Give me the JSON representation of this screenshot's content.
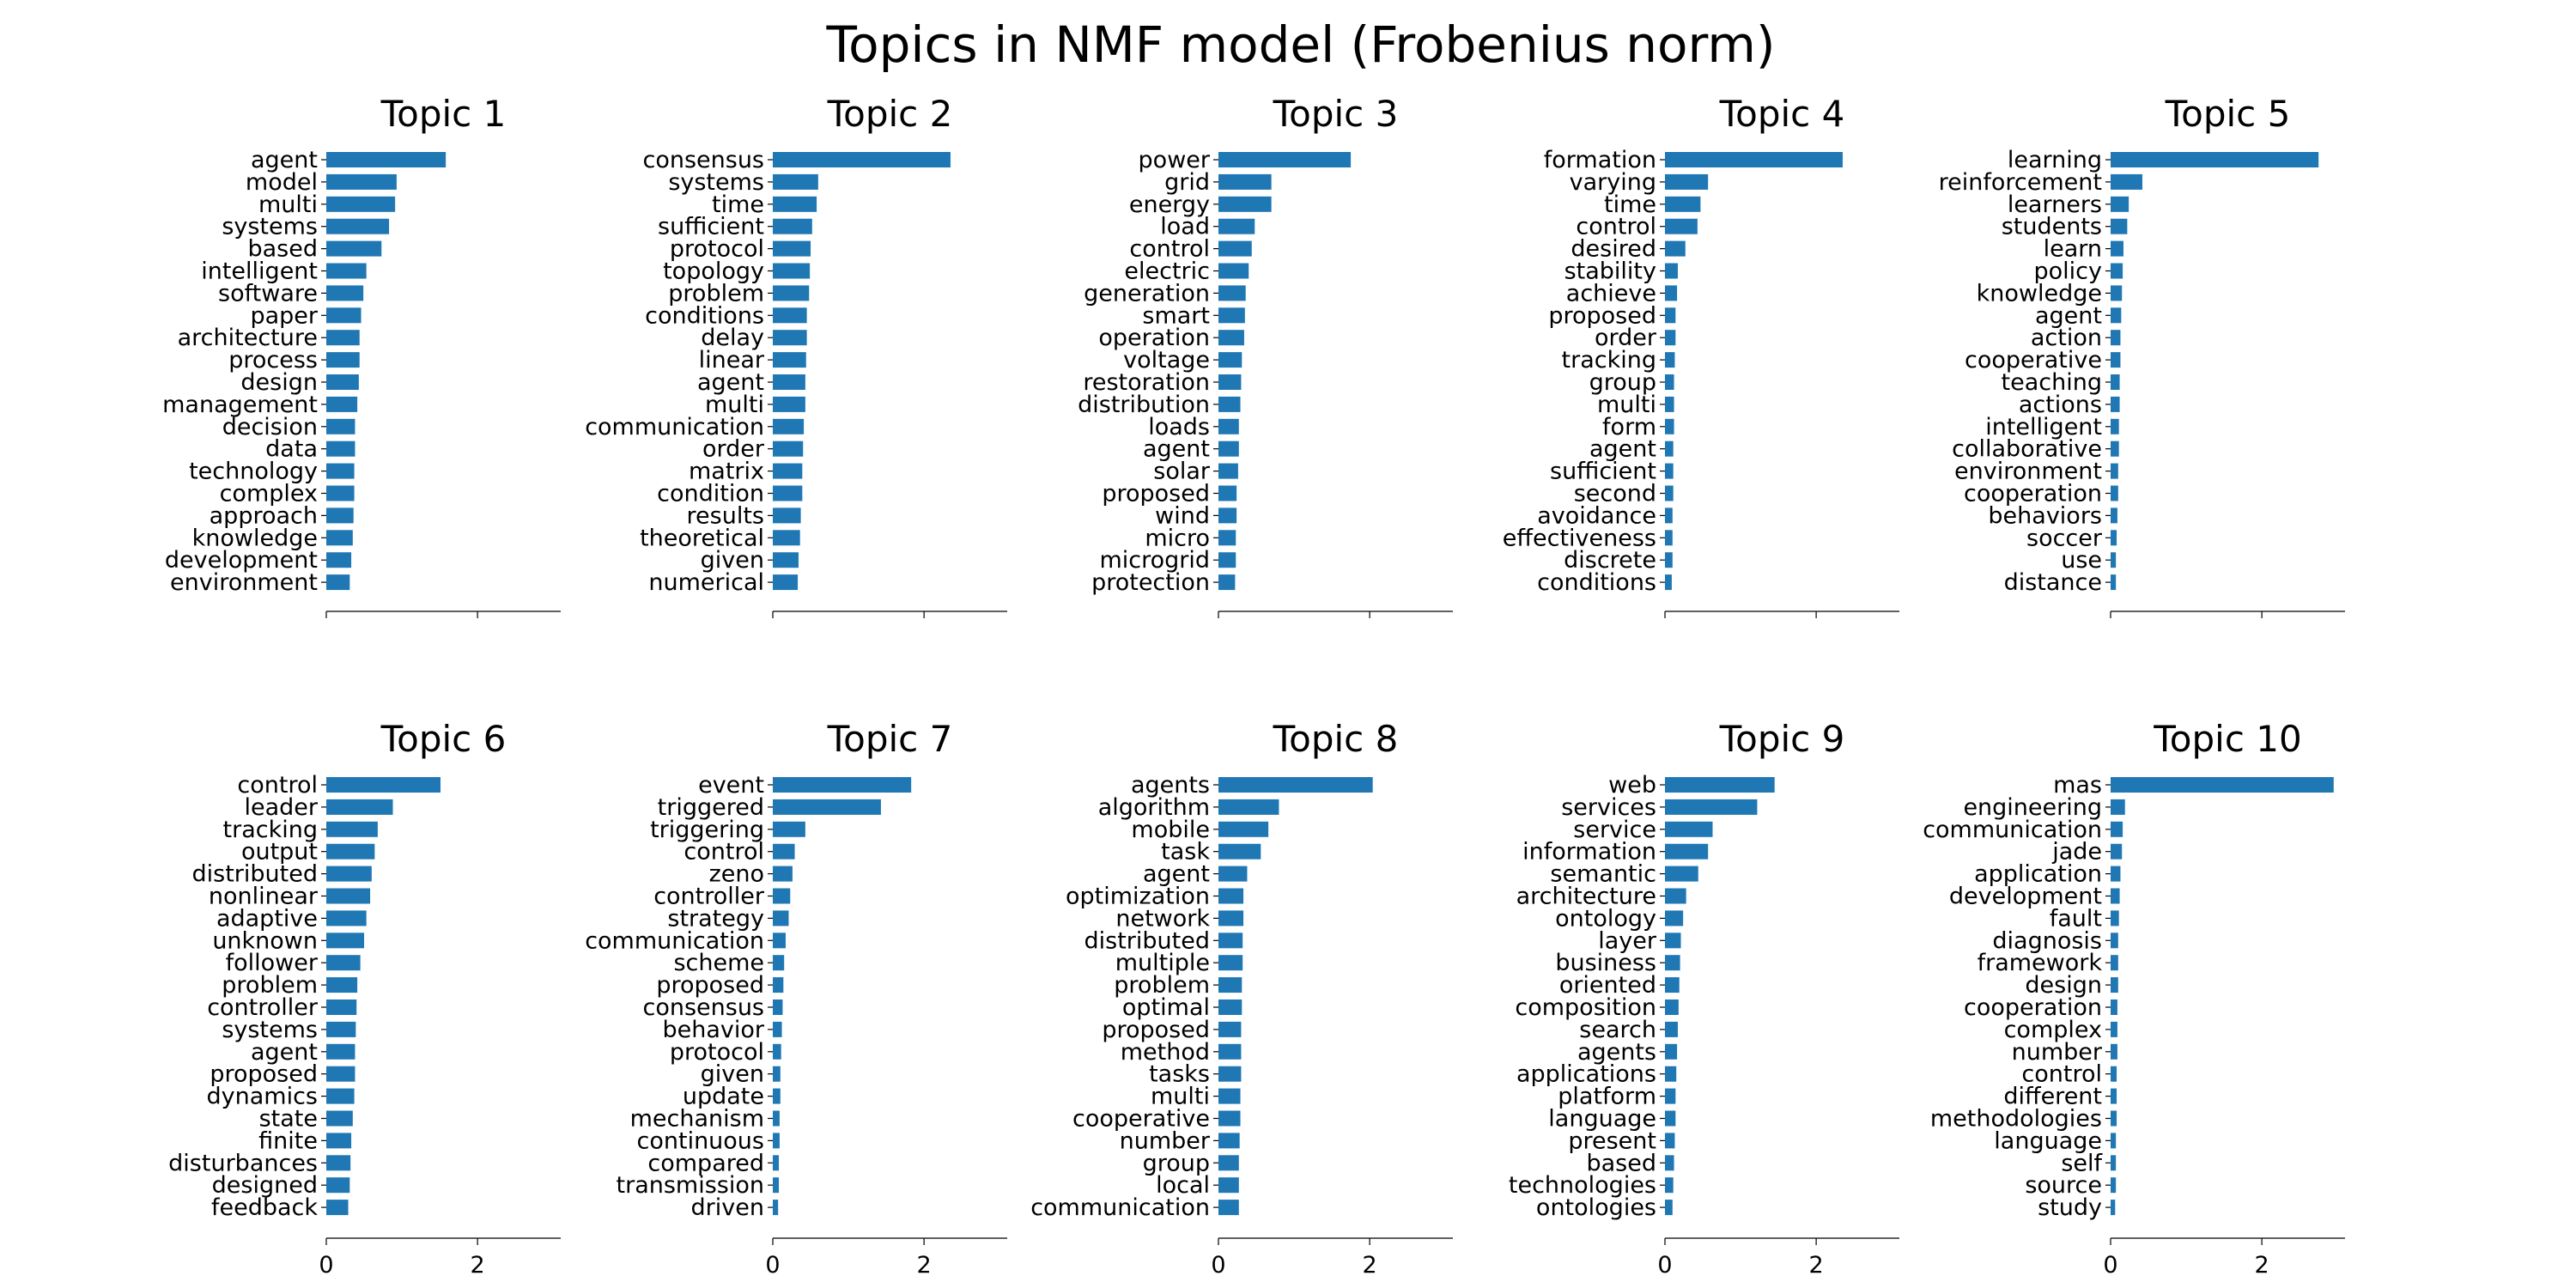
{
  "chart_data": {
    "type": "bar",
    "orientation": "horizontal",
    "title": "Topics in NMF model (Frobenius norm)",
    "xlim": [
      0,
      3.1
    ],
    "xticks": [
      0,
      2
    ],
    "grid": false,
    "bar_color": "#1f77b4",
    "subplots": [
      {
        "title": "Topic 1",
        "categories": [
          "agent",
          "model",
          "multi",
          "systems",
          "based",
          "intelligent",
          "software",
          "paper",
          "architecture",
          "process",
          "design",
          "management",
          "decision",
          "data",
          "technology",
          "complex",
          "approach",
          "knowledge",
          "development",
          "environment"
        ],
        "values": [
          1.58,
          0.93,
          0.91,
          0.83,
          0.73,
          0.53,
          0.49,
          0.46,
          0.44,
          0.44,
          0.43,
          0.41,
          0.38,
          0.38,
          0.37,
          0.37,
          0.36,
          0.35,
          0.33,
          0.31
        ]
      },
      {
        "title": "Topic 2",
        "categories": [
          "consensus",
          "systems",
          "time",
          "sufficient",
          "protocol",
          "topology",
          "problem",
          "conditions",
          "delay",
          "linear",
          "agent",
          "multi",
          "communication",
          "order",
          "matrix",
          "condition",
          "results",
          "theoretical",
          "given",
          "numerical"
        ],
        "values": [
          2.35,
          0.6,
          0.58,
          0.52,
          0.5,
          0.49,
          0.48,
          0.45,
          0.45,
          0.44,
          0.43,
          0.43,
          0.41,
          0.4,
          0.39,
          0.39,
          0.37,
          0.36,
          0.34,
          0.33
        ]
      },
      {
        "title": "Topic 3",
        "categories": [
          "power",
          "grid",
          "energy",
          "load",
          "control",
          "electric",
          "generation",
          "smart",
          "operation",
          "voltage",
          "restoration",
          "distribution",
          "loads",
          "agent",
          "solar",
          "proposed",
          "wind",
          "micro",
          "microgrid",
          "protection"
        ],
        "values": [
          1.75,
          0.7,
          0.7,
          0.48,
          0.44,
          0.4,
          0.36,
          0.35,
          0.34,
          0.31,
          0.3,
          0.29,
          0.27,
          0.27,
          0.26,
          0.24,
          0.24,
          0.23,
          0.23,
          0.22
        ]
      },
      {
        "title": "Topic 4",
        "categories": [
          "formation",
          "varying",
          "time",
          "control",
          "desired",
          "stability",
          "achieve",
          "proposed",
          "order",
          "tracking",
          "group",
          "multi",
          "form",
          "agent",
          "sufficient",
          "second",
          "avoidance",
          "effectiveness",
          "discrete",
          "conditions"
        ],
        "values": [
          2.35,
          0.57,
          0.47,
          0.43,
          0.27,
          0.17,
          0.16,
          0.14,
          0.14,
          0.13,
          0.12,
          0.12,
          0.12,
          0.11,
          0.11,
          0.11,
          0.1,
          0.1,
          0.1,
          0.09
        ]
      },
      {
        "title": "Topic 5",
        "categories": [
          "learning",
          "reinforcement",
          "learners",
          "students",
          "learn",
          "policy",
          "knowledge",
          "agent",
          "action",
          "cooperative",
          "teaching",
          "actions",
          "intelligent",
          "collaborative",
          "environment",
          "cooperation",
          "behaviors",
          "soccer",
          "use",
          "distance"
        ],
        "values": [
          2.75,
          0.42,
          0.24,
          0.22,
          0.17,
          0.16,
          0.15,
          0.14,
          0.13,
          0.13,
          0.12,
          0.12,
          0.11,
          0.11,
          0.1,
          0.1,
          0.09,
          0.08,
          0.07,
          0.07
        ]
      },
      {
        "title": "Topic 6",
        "categories": [
          "control",
          "leader",
          "tracking",
          "output",
          "distributed",
          "nonlinear",
          "adaptive",
          "unknown",
          "follower",
          "problem",
          "controller",
          "systems",
          "agent",
          "proposed",
          "dynamics",
          "state",
          "finite",
          "disturbances",
          "designed",
          "feedback"
        ],
        "values": [
          1.51,
          0.88,
          0.68,
          0.64,
          0.6,
          0.58,
          0.53,
          0.5,
          0.45,
          0.41,
          0.4,
          0.39,
          0.38,
          0.38,
          0.37,
          0.35,
          0.33,
          0.32,
          0.31,
          0.29
        ]
      },
      {
        "title": "Topic 7",
        "categories": [
          "event",
          "triggered",
          "triggering",
          "control",
          "zeno",
          "controller",
          "strategy",
          "communication",
          "scheme",
          "proposed",
          "consensus",
          "behavior",
          "protocol",
          "given",
          "update",
          "mechanism",
          "continuous",
          "compared",
          "transmission",
          "driven"
        ],
        "values": [
          1.83,
          1.43,
          0.43,
          0.29,
          0.26,
          0.23,
          0.21,
          0.17,
          0.15,
          0.14,
          0.13,
          0.12,
          0.11,
          0.1,
          0.1,
          0.09,
          0.09,
          0.08,
          0.08,
          0.07
        ]
      },
      {
        "title": "Topic 8",
        "categories": [
          "agents",
          "algorithm",
          "mobile",
          "task",
          "agent",
          "optimization",
          "network",
          "distributed",
          "multiple",
          "problem",
          "optimal",
          "proposed",
          "method",
          "tasks",
          "multi",
          "cooperative",
          "number",
          "group",
          "local",
          "communication"
        ],
        "values": [
          2.04,
          0.8,
          0.66,
          0.56,
          0.38,
          0.33,
          0.33,
          0.32,
          0.32,
          0.31,
          0.31,
          0.3,
          0.3,
          0.3,
          0.29,
          0.29,
          0.28,
          0.27,
          0.27,
          0.27
        ]
      },
      {
        "title": "Topic 9",
        "categories": [
          "web",
          "services",
          "service",
          "information",
          "semantic",
          "architecture",
          "ontology",
          "layer",
          "business",
          "oriented",
          "composition",
          "search",
          "agents",
          "applications",
          "platform",
          "language",
          "present",
          "based",
          "technologies",
          "ontologies"
        ],
        "values": [
          1.45,
          1.22,
          0.63,
          0.57,
          0.44,
          0.28,
          0.24,
          0.21,
          0.2,
          0.19,
          0.18,
          0.17,
          0.16,
          0.15,
          0.14,
          0.14,
          0.13,
          0.12,
          0.11,
          0.1
        ]
      },
      {
        "title": "Topic 10",
        "categories": [
          "mas",
          "engineering",
          "communication",
          "jade",
          "application",
          "development",
          "fault",
          "diagnosis",
          "framework",
          "design",
          "cooperation",
          "complex",
          "number",
          "control",
          "different",
          "methodologies",
          "language",
          "self",
          "source",
          "study"
        ],
        "values": [
          2.95,
          0.19,
          0.16,
          0.15,
          0.13,
          0.12,
          0.11,
          0.1,
          0.1,
          0.1,
          0.09,
          0.09,
          0.09,
          0.08,
          0.08,
          0.08,
          0.07,
          0.07,
          0.07,
          0.06
        ]
      }
    ]
  }
}
